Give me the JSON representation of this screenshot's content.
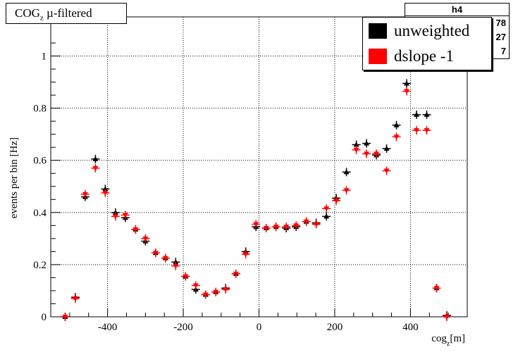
{
  "title_main": "COG",
  "title_sub": "z",
  "title_rest": " µ-filtered",
  "stats": {
    "header": "h4",
    "rows": [
      "78",
      "27",
      "7"
    ]
  },
  "legend": [
    {
      "name": "unweighted",
      "color": "#000000"
    },
    {
      "name": "dslope -1",
      "color": "#ff0000"
    }
  ],
  "colors": {
    "unweighted": "#000000",
    "dslope": "#ff0000"
  },
  "chart_data": {
    "type": "scatter",
    "title": "COGz µ-filtered",
    "xlabel": "cog_z[m]",
    "xlabel_main": "cog",
    "xlabel_sub": "z",
    "xlabel_rest": "[m]",
    "ylabel": "events per bin [Hz]",
    "xlim": [
      -550,
      550
    ],
    "ylim": [
      0,
      1.15
    ],
    "xticks": [
      -400,
      -200,
      0,
      200,
      400
    ],
    "xtick_labels": [
      "-400",
      "-200",
      "0",
      "200",
      "400"
    ],
    "yticks": [
      0,
      0.2,
      0.4,
      0.6,
      0.8,
      1
    ],
    "ytick_labels": [
      "0",
      "0.2",
      "0.4",
      "0.6",
      "0.8",
      "1"
    ],
    "grid": true,
    "legend_position": "top-right",
    "series": [
      {
        "name": "unweighted",
        "marker": "triangle-up",
        "color": "#000000",
        "x": [
          -512,
          -485,
          -459,
          -432,
          -406,
          -379,
          -353,
          -326,
          -300,
          -273,
          -247,
          -220,
          -194,
          -167,
          -141,
          -114,
          -88,
          -61,
          -35,
          -8,
          19,
          45,
          72,
          98,
          125,
          151,
          178,
          204,
          231,
          257,
          284,
          310,
          337,
          363,
          390,
          416,
          443,
          469,
          496
        ],
        "y": [
          0.0,
          0.075,
          0.46,
          0.605,
          0.49,
          0.4,
          0.38,
          0.335,
          0.29,
          0.245,
          0.225,
          0.21,
          0.155,
          0.105,
          0.085,
          0.095,
          0.11,
          0.165,
          0.25,
          0.345,
          0.34,
          0.345,
          0.34,
          0.345,
          0.365,
          0.36,
          0.385,
          0.455,
          0.555,
          0.66,
          0.665,
          0.62,
          0.645,
          0.735,
          0.895,
          0.775,
          0.775,
          0.11,
          0.005
        ]
      },
      {
        "name": "dslope -1",
        "marker": "triangle-down",
        "color": "#ff0000",
        "x": [
          -512,
          -485,
          -459,
          -432,
          -406,
          -379,
          -353,
          -326,
          -300,
          -273,
          -247,
          -220,
          -194,
          -167,
          -141,
          -114,
          -88,
          -61,
          -35,
          -8,
          19,
          45,
          72,
          98,
          125,
          151,
          178,
          204,
          231,
          257,
          284,
          310,
          337,
          363,
          390,
          416,
          443,
          469,
          496
        ],
        "y": [
          0.0,
          0.07,
          0.47,
          0.57,
          0.475,
          0.385,
          0.39,
          0.335,
          0.3,
          0.245,
          0.225,
          0.195,
          0.155,
          0.12,
          0.085,
          0.095,
          0.105,
          0.165,
          0.24,
          0.355,
          0.34,
          0.345,
          0.345,
          0.35,
          0.365,
          0.355,
          0.415,
          0.445,
          0.485,
          0.64,
          0.625,
          0.625,
          0.56,
          0.69,
          0.865,
          0.715,
          0.715,
          0.11,
          0.0
        ]
      }
    ]
  }
}
